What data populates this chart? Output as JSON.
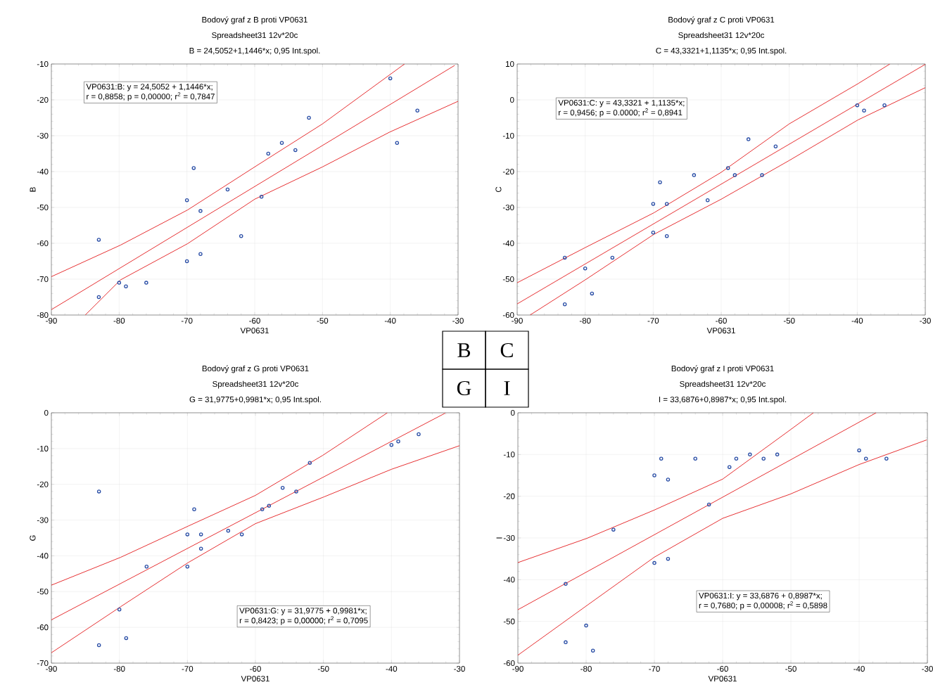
{
  "chart_data": [
    {
      "type": "scatter",
      "title": "Bodový graf z B proti VP0631",
      "subtitle": "Spreadsheet31 12v*20c",
      "xlabel": "VP0631",
      "ylabel": "B",
      "annotations": [
        "B = 24,5052+1,1446*x; 0,95 Int.spol.",
        "VP0631:B:    y = 24,5052 + 1,1446*x;",
        "r = 0,8858; p = 0,00000; r$^{2}$ = 0,7847"
      ],
      "xlim": [
        -90,
        -30
      ],
      "ylim": [
        -80,
        -10
      ],
      "xticks": [
        -90,
        -80,
        -70,
        -60,
        -50,
        -40,
        -30
      ],
      "yticks": [
        -80,
        -70,
        -60,
        -50,
        -40,
        -30,
        -20,
        -10
      ],
      "grid": true,
      "x": [
        -83,
        -83,
        -80,
        -79,
        -76,
        -70,
        -70,
        -69,
        -68,
        -68,
        -64,
        -62,
        -59,
        -58,
        -56,
        -54,
        -52,
        -40,
        -39,
        -36
      ],
      "series": [
        {
          "type": "line",
          "color": "#e31a1c",
          "x": [
            -90,
            -30.5
          ],
          "values": [
            -78.5,
            -10.4
          ]
        },
        {
          "type": "line",
          "color": "#e31a1c",
          "x": [
            -90,
            -79.8,
            -69.9,
            -60,
            -50,
            -37.9
          ],
          "values": [
            -69.3,
            -60.5,
            -50.7,
            -38.7,
            -26.7,
            -10
          ]
        },
        {
          "type": "line",
          "color": "#e31a1c",
          "x": [
            -85,
            -79.8,
            -69.9,
            -60,
            -50,
            -40.1,
            -30
          ],
          "values": [
            -80,
            -70.2,
            -60.1,
            -47.7,
            -38.7,
            -29,
            -20.4
          ]
        },
        {
          "type": "scatter",
          "color": "#2a4ea6",
          "marker": "circle",
          "values": [
            -59,
            -75,
            -71,
            -72,
            -71,
            -48,
            -65,
            -39,
            -51,
            -63,
            -45,
            -58,
            -47,
            -35,
            -32,
            -34,
            -25,
            -14,
            -32,
            -23
          ]
        }
      ]
    },
    {
      "type": "scatter",
      "title": "Bodový graf z C proti VP0631",
      "subtitle": "Spreadsheet31 12v*20c",
      "xlabel": "VP0631",
      "ylabel": "C",
      "annotations": [
        "C = 43,3321+1,1135*x; 0,95 Int.spol.",
        "VP0631:C:    y = 43,3321 + 1,1135*x;",
        "r = 0,9456; p = 0.0000; r$^{2}$ = 0,8941"
      ],
      "xlim": [
        -90,
        -30
      ],
      "ylim": [
        -60,
        10
      ],
      "xticks": [
        -90,
        -80,
        -70,
        -60,
        -50,
        -40,
        -30
      ],
      "yticks": [
        -60,
        -50,
        -40,
        -30,
        -20,
        -10,
        0,
        10
      ],
      "grid": true,
      "x": [
        -83,
        -83,
        -80,
        -79,
        -76,
        -70,
        -70,
        -69,
        -68,
        -68,
        -64,
        -62,
        -59,
        -58,
        -56,
        -54,
        -52,
        -40,
        -39,
        -36
      ],
      "series": [
        {
          "type": "line",
          "color": "#e31a1c",
          "x": [
            -90,
            -30
          ],
          "values": [
            -56.9,
            9.9
          ]
        },
        {
          "type": "line",
          "color": "#e31a1c",
          "x": [
            -90,
            -80,
            -69.9,
            -60,
            -50,
            -39.9,
            -35.2
          ],
          "values": [
            -51,
            -41.2,
            -31.5,
            -20.2,
            -6.7,
            4.5,
            10
          ]
        },
        {
          "type": "line",
          "color": "#e31a1c",
          "x": [
            -88.1,
            -80,
            -69.9,
            -60,
            -50,
            -39.9,
            -30
          ],
          "values": [
            -60,
            -50.2,
            -37.5,
            -27.7,
            -16.9,
            -5.6,
            3.4
          ]
        },
        {
          "type": "scatter",
          "color": "#2a4ea6",
          "marker": "circle",
          "values": [
            -44,
            -57,
            -47,
            -54,
            -44,
            -29,
            -37,
            -23,
            -29,
            -38,
            -21,
            -28,
            -19,
            -21,
            -11,
            -21,
            -13,
            -1.5,
            -3,
            -1.5
          ]
        }
      ]
    },
    {
      "type": "scatter",
      "title": "Bodový graf z G proti VP0631",
      "subtitle": "Spreadsheet31 12v*20c",
      "xlabel": "VP0631",
      "ylabel": "G",
      "annotations": [
        "G = 31,9775+0,9981*x; 0,95 Int.spol.",
        "VP0631:G:    y = 31,9775 + 0,9981*x;",
        "r = 0,8423; p = 0,00000; r$^{2}$ = 0,7095"
      ],
      "xlim": [
        -90,
        -30
      ],
      "ylim": [
        -70,
        0
      ],
      "xticks": [
        -90,
        -80,
        -70,
        -60,
        -50,
        -40,
        -30
      ],
      "yticks": [
        -70,
        -60,
        -50,
        -40,
        -30,
        -20,
        -10,
        0
      ],
      "grid": true,
      "x": [
        -83,
        -83,
        -80,
        -79,
        -76,
        -70,
        -70,
        -69,
        -68,
        -68,
        -64,
        -62,
        -59,
        -58,
        -56,
        -54,
        -52,
        -40,
        -39,
        -36
      ],
      "series": [
        {
          "type": "line",
          "color": "#e31a1c",
          "x": [
            -90,
            -32.1
          ],
          "values": [
            -57.9,
            -0.1
          ]
        },
        {
          "type": "line",
          "color": "#e31a1c",
          "x": [
            -90,
            -79.8,
            -69.9,
            -60,
            -50.1,
            -40.6
          ],
          "values": [
            -48.2,
            -40.4,
            -31.7,
            -23.1,
            -11.9,
            0
          ]
        },
        {
          "type": "line",
          "color": "#e31a1c",
          "x": [
            -90,
            -79.8,
            -69.9,
            -60,
            -49.9,
            -40,
            -30
          ],
          "values": [
            -67.1,
            -54.2,
            -41.9,
            -31,
            -23.5,
            -15.8,
            -9.2
          ]
        },
        {
          "type": "scatter",
          "color": "#2a4ea6",
          "marker": "circle",
          "values": [
            -22,
            -65,
            -55,
            -63,
            -43,
            -34,
            -43,
            -27,
            -34,
            -38,
            -33,
            -34,
            -27,
            -26,
            -21,
            -22,
            -14,
            -9,
            -8,
            -6
          ]
        }
      ]
    },
    {
      "type": "scatter",
      "title": "Bodový graf z I proti VP0631",
      "subtitle": "Spreadsheet31 12v*20c",
      "xlabel": "VP0631",
      "ylabel": "I",
      "annotations": [
        "I = 33,6876+0,8987*x; 0,95 Int.spol.",
        "VP0631:I:    y = 33,6876 + 0,8987*x;",
        "r = 0,7680; p = 0,00008; r$^{2}$ = 0,5898"
      ],
      "xlim": [
        -90,
        -30
      ],
      "ylim": [
        -60,
        0
      ],
      "xticks": [
        -90,
        -80,
        -70,
        -60,
        -50,
        -40,
        -30
      ],
      "yticks": [
        -60,
        -50,
        -40,
        -30,
        -20,
        -10,
        0
      ],
      "grid": true,
      "x": [
        -83,
        -83,
        -80,
        -79,
        -76,
        -70,
        -70,
        -69,
        -68,
        -68,
        -64,
        -62,
        -59,
        -58,
        -56,
        -54,
        -52,
        -40,
        -39,
        -36
      ],
      "series": [
        {
          "type": "line",
          "color": "#e31a1c",
          "x": [
            -90,
            -37.5
          ],
          "values": [
            -47.2,
            0
          ]
        },
        {
          "type": "line",
          "color": "#e31a1c",
          "x": [
            -90,
            -79.9,
            -70,
            -60,
            -50.1,
            -46.7
          ],
          "values": [
            -35.9,
            -30.1,
            -23.3,
            -15.9,
            -4.1,
            0
          ]
        },
        {
          "type": "line",
          "color": "#e31a1c",
          "x": [
            -90,
            -79.9,
            -70,
            -60,
            -50.1,
            -40,
            -30.1
          ],
          "values": [
            -58.1,
            -46.2,
            -34.6,
            -25.3,
            -19.5,
            -12.4,
            -6.5
          ]
        },
        {
          "type": "scatter",
          "color": "#2a4ea6",
          "marker": "circle",
          "values": [
            -41,
            -55,
            -51,
            -57,
            -28,
            -15,
            -36,
            -11,
            -16,
            -35,
            -11,
            -22,
            -13,
            -11,
            -10,
            -11,
            -10,
            -9,
            -11,
            -11
          ]
        }
      ]
    },
    {
      "type": "other",
      "annotations": [
        "B",
        "C",
        "G",
        "I"
      ]
    }
  ]
}
